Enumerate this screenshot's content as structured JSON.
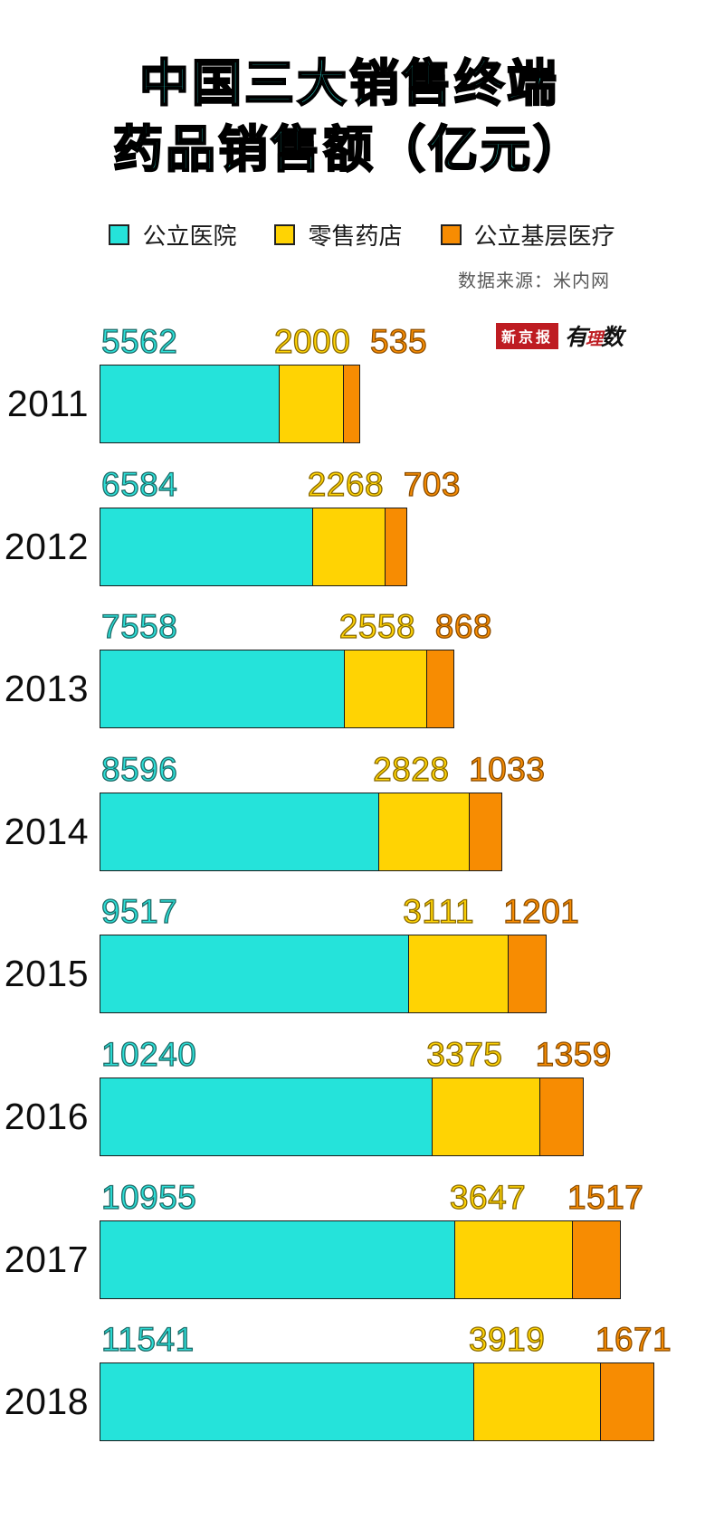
{
  "title": {
    "line1": "中国三大销售终端",
    "line2": "药品销售额（亿元）"
  },
  "source_note": "数据来源：米内网",
  "logo": {
    "brand": "新京报",
    "sub1": "有",
    "sub2": "理",
    "sub3": "数"
  },
  "colors": {
    "hospital": "#25E3DA",
    "pharmacy": "#FFD303",
    "grassroots": "#F78C02",
    "bar_border": "#1A1A1A",
    "title_fill": "#2BE0D6",
    "logo_red": "#BE1C22"
  },
  "chart_data": {
    "type": "bar",
    "orientation": "horizontal",
    "stacked": true,
    "title": "中国三大销售终端药品销售额（亿元）",
    "unit": "亿元",
    "legend_position": "top",
    "source": "数据来源：米内网",
    "categories": [
      "2011",
      "2012",
      "2013",
      "2014",
      "2015",
      "2016",
      "2017",
      "2018"
    ],
    "series": [
      {
        "name": "公立医院",
        "color": "#25E3DA",
        "values": [
          5562,
          6584,
          7558,
          8596,
          9517,
          10240,
          10955,
          11541
        ]
      },
      {
        "name": "零售药店",
        "color": "#FFD303",
        "values": [
          2000,
          2268,
          2558,
          2828,
          3111,
          3375,
          3647,
          3919
        ]
      },
      {
        "name": "公立基层医疗",
        "color": "#F78C02",
        "values": [
          535,
          703,
          868,
          1033,
          1201,
          1359,
          1517,
          1671
        ]
      }
    ]
  }
}
